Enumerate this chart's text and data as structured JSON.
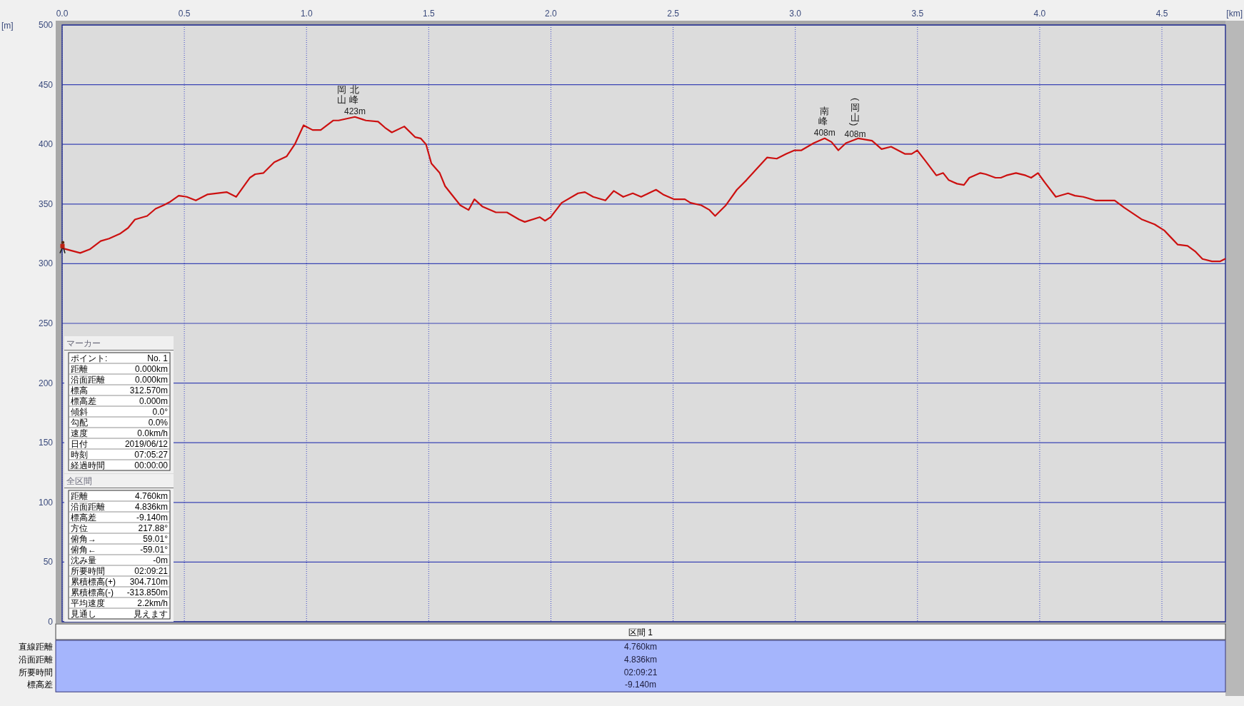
{
  "chart_data": [
    {
      "type": "line",
      "xlabel": "[km]",
      "ylabel": "[m]",
      "x": [
        0,
        0.074,
        0.113,
        0.158,
        0.192,
        0.236,
        0.27,
        0.298,
        0.348,
        0.382,
        0.415,
        0.443,
        0.477,
        0.51,
        0.547,
        0.594,
        0.673,
        0.712,
        0.768,
        0.79,
        0.824,
        0.868,
        0.919,
        0.952,
        0.988,
        1.025,
        1.058,
        1.109,
        1.131,
        1.198,
        1.243,
        1.293,
        1.321,
        1.349,
        1.4,
        1.445,
        1.467,
        1.489,
        1.511,
        1.545,
        1.567,
        1.59,
        1.629,
        1.663,
        1.687,
        1.719,
        1.775,
        1.82,
        1.87,
        1.893,
        1.954,
        1.976,
        1.999,
        2.044,
        2.111,
        2.139,
        2.173,
        2.223,
        2.257,
        2.296,
        2.335,
        2.369,
        2.43,
        2.459,
        2.503,
        2.548,
        2.571,
        2.615,
        2.649,
        2.672,
        2.716,
        2.761,
        2.8,
        2.84,
        2.885,
        2.924,
        2.963,
        2.997,
        3.025,
        3.075,
        3.12,
        3.148,
        3.176,
        3.207,
        3.258,
        3.314,
        3.353,
        3.392,
        3.448,
        3.476,
        3.499,
        3.533,
        3.577,
        3.605,
        3.628,
        3.662,
        3.69,
        3.712,
        3.757,
        3.779,
        3.819,
        3.841,
        3.864,
        3.903,
        3.942,
        3.965,
        3.993,
        4.021,
        4.066,
        4.116,
        4.144,
        4.178,
        4.228,
        4.268,
        4.307,
        4.346,
        4.419,
        4.47,
        4.509,
        4.537,
        4.565,
        4.605,
        4.638,
        4.666,
        4.705,
        4.739,
        4.758
      ],
      "series": [
        {
          "color": "#cc1010",
          "values": [
            313,
            309,
            312,
            319,
            321,
            325,
            330,
            337,
            340,
            346,
            349,
            352,
            357,
            356,
            353,
            358,
            360,
            356,
            372,
            375,
            376,
            385,
            390,
            400,
            416,
            412,
            412,
            420,
            420,
            423,
            420,
            419,
            414,
            410,
            415,
            406,
            405,
            400,
            384,
            376,
            365,
            359,
            349,
            345,
            354,
            348,
            343,
            343,
            337,
            335,
            339,
            336,
            339,
            351,
            359,
            360,
            356,
            353,
            361,
            356,
            359,
            356,
            362,
            358,
            354,
            354,
            351,
            349,
            345,
            340,
            349,
            362,
            370,
            379,
            389,
            388,
            392,
            395,
            395,
            401,
            405,
            402,
            395,
            401,
            405,
            403,
            396,
            398,
            392,
            392,
            395,
            386,
            374,
            376,
            370,
            367,
            366,
            372,
            376,
            375,
            372,
            372,
            374,
            376,
            374,
            372,
            376,
            368,
            356,
            359,
            357,
            356,
            353,
            353,
            353,
            347,
            337,
            333,
            328,
            322,
            316,
            315,
            310,
            304,
            302,
            302,
            304
          ]
        }
      ],
      "xlim": [
        0,
        4.76
      ],
      "xticks": [
        {
          "value": 0,
          "label": "0.0"
        },
        0.5,
        {
          "value": 1,
          "label": "1.0"
        },
        1.5,
        {
          "value": 2,
          "label": "2.0"
        },
        2.5,
        {
          "value": 3,
          "label": "3.0"
        },
        3.5,
        {
          "value": 4,
          "label": "4.0"
        },
        4.5
      ],
      "ylim": [
        0,
        500
      ],
      "yticks": [
        0,
        50,
        100,
        150,
        200,
        250,
        300,
        350,
        400,
        450,
        500
      ],
      "grid": true,
      "annotations": [
        {
          "text": "岡山",
          "x": 1.145,
          "y": 423
        },
        {
          "text": "北峰 423m",
          "x": 1.198,
          "y": 423
        },
        {
          "text": "南峰 408m",
          "x": 3.12,
          "y": 405
        },
        {
          "text": "(岡山) 408m",
          "x": 3.245,
          "y": 404
        }
      ]
    },
    {
      "type": "other",
      "title": "マーカー",
      "annotations": [
        "ポイント:",
        "No. 1",
        "距離",
        "0.000km",
        "沿面距離",
        "0.000km",
        "標高",
        "312.570m",
        "標高差",
        "0.000m",
        "傾斜",
        "0.0°",
        "勾配",
        "0.0%",
        "速度",
        "0.0km/h",
        "日付",
        "2019/06/12",
        "時刻",
        "07:05:27",
        "経過時間",
        "00:00:00"
      ]
    },
    {
      "type": "other",
      "title": "全区間",
      "annotations": [
        "距離",
        "4.760km",
        "沿面距離",
        "4.836km",
        "標高差",
        "-9.140m",
        "方位",
        "217.88°",
        "俯角→",
        "59.01°",
        "俯角←",
        "-59.01°",
        "沈み量",
        "-0m",
        "所要時間",
        "02:09:21",
        "累積標高(+)",
        "304.710m",
        "累積標高(-)",
        "-313.850m",
        "平均速度",
        "2.2km/h",
        "見通し",
        "見えます"
      ]
    },
    {
      "type": "other",
      "title": "区間 1",
      "annotations": [
        "直線距離",
        "4.760km",
        "沿面距離",
        "4.836km",
        "所要時間",
        "02:09:21",
        "標高差",
        "-9.140m"
      ]
    }
  ]
}
